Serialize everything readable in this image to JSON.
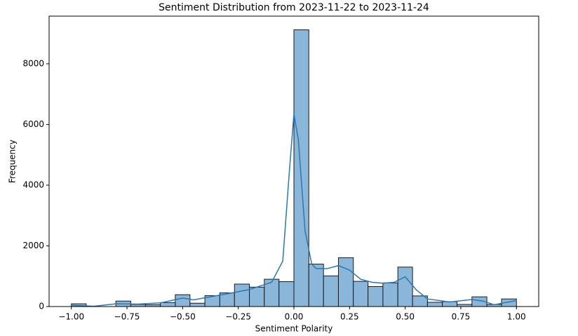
{
  "chart_data": {
    "type": "histogram",
    "title": "Sentiment Distribution from 2023-11-22 to 2023-11-24",
    "xlabel": "Sentiment Polarity",
    "ylabel": "Frequency",
    "bins": [
      -1.0,
      -0.933,
      -0.867,
      -0.8,
      -0.733,
      -0.667,
      -0.6,
      -0.533,
      -0.467,
      -0.4,
      -0.333,
      -0.267,
      -0.2,
      -0.133,
      -0.067,
      0.0,
      0.067,
      0.133,
      0.2,
      0.267,
      0.333,
      0.4,
      0.467,
      0.533,
      0.6,
      0.667,
      0.733,
      0.8,
      0.867,
      0.933,
      1.0
    ],
    "counts": [
      90,
      0,
      0,
      180,
      70,
      60,
      130,
      390,
      110,
      360,
      450,
      740,
      640,
      900,
      820,
      9120,
      1400,
      1010,
      1610,
      830,
      660,
      780,
      1300,
      350,
      140,
      160,
      70,
      320,
      70,
      250
    ],
    "color": "#8ab6da",
    "edgecolor": "#1a1a1a",
    "kde": {
      "color": "#2d78b2",
      "x": [
        -1.0,
        -0.9,
        -0.8,
        -0.7,
        -0.6,
        -0.5,
        -0.45,
        -0.4,
        -0.3,
        -0.2,
        -0.1,
        -0.05,
        -0.02,
        0.0,
        0.02,
        0.05,
        0.08,
        0.1,
        0.15,
        0.2,
        0.25,
        0.3,
        0.35,
        0.4,
        0.45,
        0.5,
        0.55,
        0.6,
        0.7,
        0.8,
        0.85,
        0.9,
        1.0
      ],
      "values": [
        40,
        10,
        90,
        80,
        120,
        280,
        220,
        290,
        420,
        560,
        800,
        1500,
        4500,
        6350,
        5500,
        2500,
        1400,
        1250,
        1250,
        1350,
        1200,
        900,
        800,
        770,
        800,
        980,
        550,
        250,
        150,
        230,
        180,
        60,
        200
      ]
    },
    "xlim": [
      -1.1,
      1.1
    ],
    "ylim": [
      0,
      9570
    ],
    "xticks": [
      {
        "value": -1.0,
        "label": "−1.00"
      },
      {
        "value": -0.75,
        "label": "−0.75"
      },
      {
        "value": -0.5,
        "label": "−0.50"
      },
      {
        "value": -0.25,
        "label": "−0.25"
      },
      {
        "value": 0.0,
        "label": "0.00"
      },
      {
        "value": 0.25,
        "label": "0.25"
      },
      {
        "value": 0.5,
        "label": "0.50"
      },
      {
        "value": 0.75,
        "label": "0.75"
      },
      {
        "value": 1.0,
        "label": "1.00"
      }
    ],
    "yticks": [
      0,
      2000,
      4000,
      6000,
      8000
    ]
  }
}
